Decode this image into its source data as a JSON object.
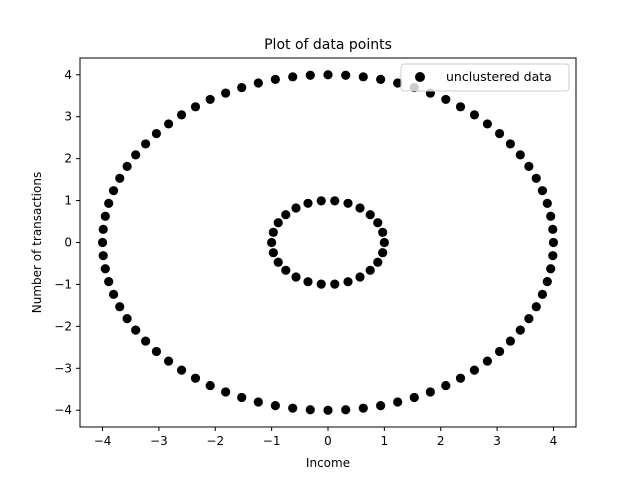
{
  "chart_data": {
    "type": "scatter",
    "title": "Plot of data points",
    "xlabel": "Income",
    "ylabel": "Number of transactions",
    "xlim": [
      -4.4,
      4.4
    ],
    "ylim": [
      -4.4,
      4.4
    ],
    "xticks": [
      -4,
      -3,
      -2,
      -1,
      0,
      1,
      2,
      3,
      4
    ],
    "yticks": [
      -4,
      -3,
      -2,
      -1,
      0,
      1,
      2,
      3,
      4
    ],
    "xtick_labels": [
      "−4",
      "−3",
      "−2",
      "−1",
      "0",
      "1",
      "2",
      "3",
      "4"
    ],
    "ytick_labels": [
      "−4",
      "−3",
      "−2",
      "−1",
      "0",
      "1",
      "2",
      "3",
      "4"
    ],
    "grid": false,
    "legend_position": "top-right",
    "series": [
      {
        "name": "unclustered data",
        "color": "#000000",
        "points": [
          [
            4.0,
            0.0
          ],
          [
            3.988,
            0.314
          ],
          [
            3.951,
            0.626
          ],
          [
            3.891,
            0.934
          ],
          [
            3.804,
            1.236
          ],
          [
            3.695,
            1.531
          ],
          [
            3.564,
            1.816
          ],
          [
            3.412,
            2.09
          ],
          [
            3.236,
            2.351
          ],
          [
            3.044,
            2.598
          ],
          [
            2.828,
            2.828
          ],
          [
            2.598,
            3.044
          ],
          [
            2.351,
            3.236
          ],
          [
            2.09,
            3.412
          ],
          [
            1.816,
            3.564
          ],
          [
            1.531,
            3.695
          ],
          [
            1.236,
            3.804
          ],
          [
            0.934,
            3.891
          ],
          [
            0.626,
            3.951
          ],
          [
            0.314,
            3.988
          ],
          [
            0.0,
            4.0
          ],
          [
            -0.314,
            3.988
          ],
          [
            -0.626,
            3.951
          ],
          [
            -0.934,
            3.891
          ],
          [
            -1.236,
            3.804
          ],
          [
            -1.531,
            3.695
          ],
          [
            -1.816,
            3.564
          ],
          [
            -2.09,
            3.412
          ],
          [
            -2.351,
            3.236
          ],
          [
            -2.598,
            3.044
          ],
          [
            -2.828,
            2.828
          ],
          [
            -3.044,
            2.598
          ],
          [
            -3.236,
            2.351
          ],
          [
            -3.412,
            2.09
          ],
          [
            -3.564,
            1.816
          ],
          [
            -3.695,
            1.531
          ],
          [
            -3.804,
            1.236
          ],
          [
            -3.891,
            0.934
          ],
          [
            -3.951,
            0.626
          ],
          [
            -3.988,
            0.314
          ],
          [
            -4.0,
            0.0
          ],
          [
            -3.988,
            -0.314
          ],
          [
            -3.951,
            -0.626
          ],
          [
            -3.891,
            -0.934
          ],
          [
            -3.804,
            -1.236
          ],
          [
            -3.695,
            -1.531
          ],
          [
            -3.564,
            -1.816
          ],
          [
            -3.412,
            -2.09
          ],
          [
            -3.236,
            -2.351
          ],
          [
            -3.044,
            -2.598
          ],
          [
            -2.828,
            -2.828
          ],
          [
            -2.598,
            -3.044
          ],
          [
            -2.351,
            -3.236
          ],
          [
            -2.09,
            -3.412
          ],
          [
            -1.816,
            -3.564
          ],
          [
            -1.531,
            -3.695
          ],
          [
            -1.236,
            -3.804
          ],
          [
            -0.934,
            -3.891
          ],
          [
            -0.626,
            -3.951
          ],
          [
            -0.314,
            -3.988
          ],
          [
            0.0,
            -4.0
          ],
          [
            0.314,
            -3.988
          ],
          [
            0.626,
            -3.951
          ],
          [
            0.934,
            -3.891
          ],
          [
            1.236,
            -3.804
          ],
          [
            1.531,
            -3.695
          ],
          [
            1.816,
            -3.564
          ],
          [
            2.09,
            -3.412
          ],
          [
            2.351,
            -3.236
          ],
          [
            2.598,
            -3.044
          ],
          [
            2.828,
            -2.828
          ],
          [
            3.044,
            -2.598
          ],
          [
            3.236,
            -2.351
          ],
          [
            3.412,
            -2.09
          ],
          [
            3.564,
            -1.816
          ],
          [
            3.695,
            -1.531
          ],
          [
            3.804,
            -1.236
          ],
          [
            3.891,
            -0.934
          ],
          [
            3.951,
            -0.626
          ],
          [
            3.988,
            -0.314
          ],
          [
            1.0,
            0.0
          ],
          [
            0.97,
            0.243
          ],
          [
            0.883,
            0.471
          ],
          [
            0.749,
            0.663
          ],
          [
            0.568,
            0.823
          ],
          [
            0.355,
            0.935
          ],
          [
            0.12,
            0.993
          ],
          [
            -0.12,
            0.993
          ],
          [
            -0.355,
            0.935
          ],
          [
            -0.568,
            0.823
          ],
          [
            -0.749,
            0.663
          ],
          [
            -0.883,
            0.471
          ],
          [
            -0.97,
            0.243
          ],
          [
            -1.0,
            0.0
          ],
          [
            -0.97,
            -0.243
          ],
          [
            -0.883,
            -0.471
          ],
          [
            -0.749,
            -0.663
          ],
          [
            -0.568,
            -0.823
          ],
          [
            -0.355,
            -0.935
          ],
          [
            -0.12,
            -0.993
          ],
          [
            0.12,
            -0.993
          ],
          [
            0.355,
            -0.935
          ],
          [
            0.568,
            -0.823
          ],
          [
            0.749,
            -0.663
          ],
          [
            0.883,
            -0.471
          ],
          [
            0.97,
            -0.243
          ]
        ]
      }
    ]
  }
}
